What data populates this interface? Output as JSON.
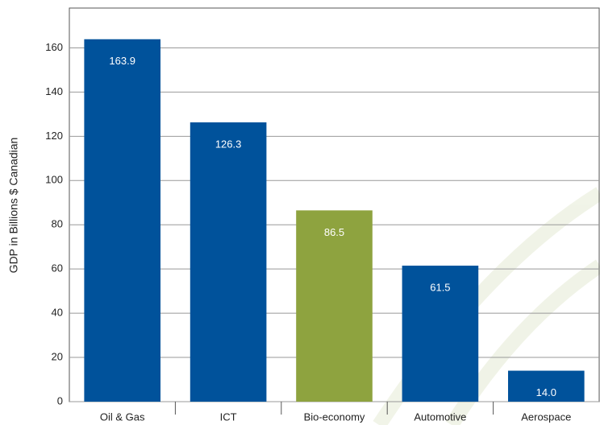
{
  "chart_data": {
    "type": "bar",
    "y_label": "GDP in Billions $ Canadian",
    "categories": [
      "Oil & Gas",
      "ICT",
      "Bio-economy",
      "Automotive",
      "Aerospace"
    ],
    "values": [
      163.9,
      126.3,
      86.5,
      61.5,
      14.0
    ],
    "value_labels": [
      "163.9",
      "126.3",
      "86.5",
      "61.5",
      "14.0"
    ],
    "colors": [
      "#00529b",
      "#00529b",
      "#8ea33f",
      "#00529b",
      "#00529b"
    ],
    "label_color": "#ffffff",
    "ylim": [
      0,
      178
    ],
    "yticks": [
      0,
      20,
      40,
      60,
      80,
      100,
      120,
      140,
      160
    ],
    "grid": true
  }
}
